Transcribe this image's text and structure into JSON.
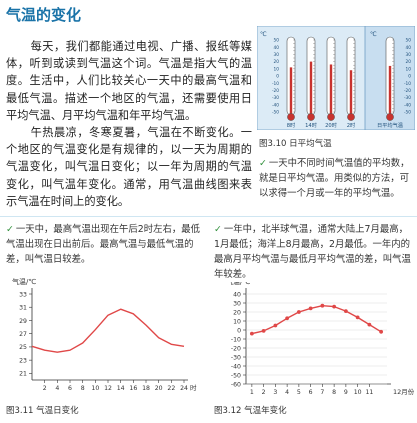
{
  "title": "气温的变化",
  "paragraphs": [
    "每天，我们都能通过电视、广播、报纸等媒体，听到或读到气温这个词。气温是指大气的温度。生活中，人们比较关心一天中的最高气温和最低气温。描述一个地区的气温，还需要使用日平均气温、月平均气温和年平均气温。",
    "午热晨凉，冬寒夏暑，气温在不断变化。一个地区的气温变化是有规律的，以一天为周期的气温变化，叫气温日变化；以一年为周期的气温变化，叫气温年变化。通常，用气温曲线图来表示气温在时间上的变化。"
  ],
  "fig310": {
    "caption": "图3.10  日平均气温",
    "unit": "℃",
    "scale_ticks": [
      "50",
      "40",
      "30",
      "20",
      "10",
      "0",
      "-10",
      "-20",
      "-30",
      "-40",
      "-50"
    ],
    "thermometers": [
      {
        "label": "8时",
        "value": 12
      },
      {
        "label": "14时",
        "value": 20
      },
      {
        "label": "20时",
        "value": 16
      },
      {
        "label": "2时",
        "value": 8
      }
    ],
    "avg_label": "日平均气温",
    "avg_value": 14
  },
  "notes": {
    "right": "一天中不同时间气温值的平均数，就是日平均气温。用类似的方法，可以求得一个月或一年的平均气温。",
    "left": "一天中，最高气温出现在午后2时左右，最低气温出现在日出前后。最高气温与最低气温的差，叫气温日较差。",
    "right2": "一年中，北半球气温，通常大陆上7月最高，1月最低；海洋上8月最高，2月最低。一年内的最高月平均气温与最低月平均气温的差，叫气温年较差。"
  },
  "chart_data": [
    {
      "type": "line",
      "caption": "图3.11  气温日变化",
      "ylabel": "气温/℃",
      "xlabel": "时",
      "ylim": [
        20,
        33
      ],
      "yticks": [
        "33",
        "31",
        "29",
        "27",
        "25",
        "23",
        "21"
      ],
      "x": [
        0,
        2,
        4,
        6,
        8,
        10,
        12,
        14,
        16,
        18,
        20,
        22,
        24
      ],
      "y": [
        25.1,
        24.5,
        24.2,
        24.5,
        25.6,
        27.6,
        29.8,
        30.7,
        30.0,
        28.3,
        26.4,
        25.4,
        25.1
      ],
      "xticks": [
        "2",
        "4",
        "6",
        "8",
        "10",
        "12",
        "14",
        "16",
        "18",
        "20",
        "22",
        "24"
      ],
      "color": "#e04848"
    },
    {
      "type": "line",
      "caption": "图3.12  气温年变化",
      "ylabel": "气温/℃",
      "xlabel": "12月份",
      "ylim": [
        -60,
        40
      ],
      "yticks": [
        "40",
        "30",
        "20",
        "10",
        "0",
        "-10",
        "-20",
        "-30",
        "-40",
        "-50",
        "-60"
      ],
      "x": [
        1,
        2,
        3,
        4,
        5,
        6,
        7,
        8,
        9,
        10,
        11,
        12
      ],
      "y": [
        -4,
        -1,
        5,
        13,
        20,
        24,
        27,
        26,
        21,
        14,
        6,
        -2
      ],
      "xticks": [
        "1",
        "2",
        "3",
        "4",
        "5",
        "6",
        "7",
        "8",
        "9",
        "10",
        "11"
      ],
      "color": "#e04848"
    }
  ]
}
